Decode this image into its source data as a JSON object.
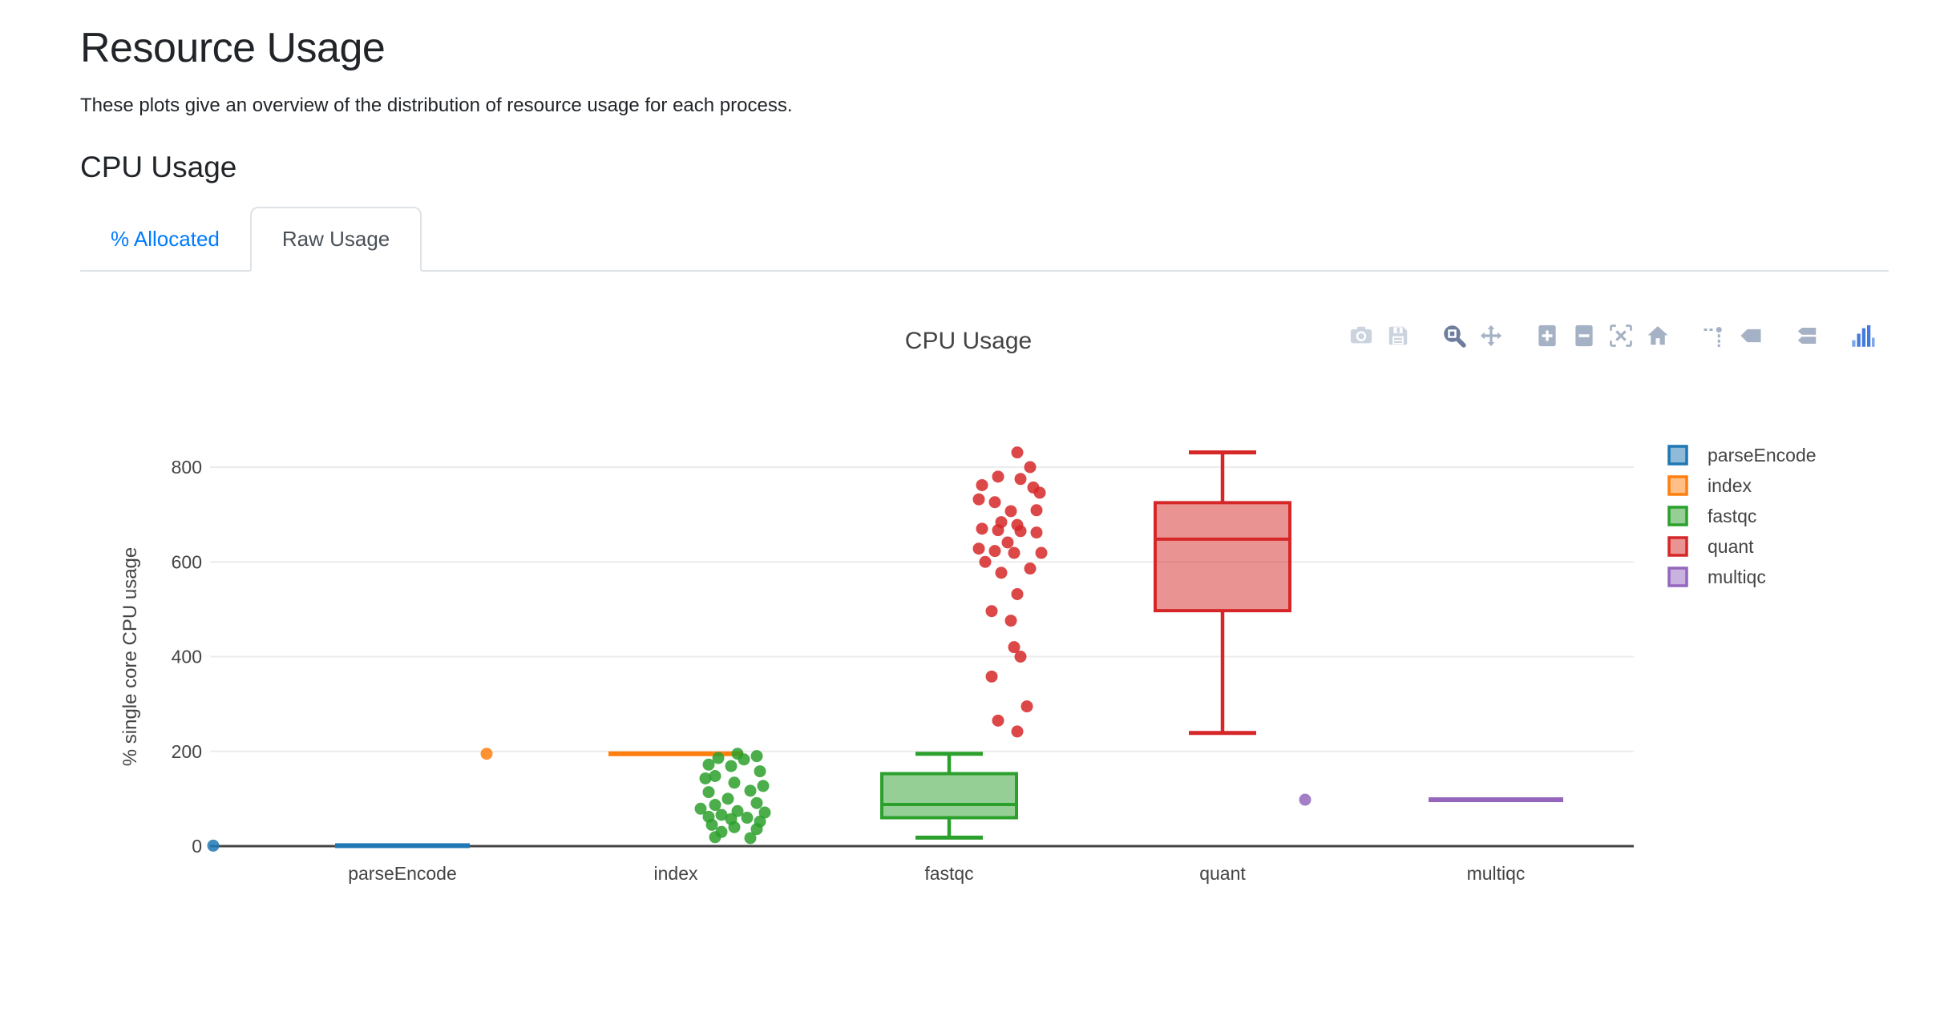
{
  "page": {
    "title": "Resource Usage",
    "subtitle": "These plots give an overview of the distribution of resource usage for each process.",
    "section_heading": "CPU Usage"
  },
  "tabs": [
    {
      "label": "% Allocated",
      "active": false
    },
    {
      "label": "Raw Usage",
      "active": true
    }
  ],
  "modebar": {
    "color_default": "#a5b1c4",
    "color_light": "#cbd3df",
    "color_active": "#6d7d9c",
    "logo_blue": "#447adb",
    "logo_blue_light": "#7da7ea",
    "icons": [
      {
        "name": "camera-icon",
        "shade": "light"
      },
      {
        "name": "save-icon",
        "shade": "light"
      },
      {
        "name": "zoom-icon",
        "shade": "active",
        "group_start": true
      },
      {
        "name": "pan-icon",
        "shade": "default"
      },
      {
        "name": "zoom-in-icon",
        "shade": "default",
        "group_start": true
      },
      {
        "name": "zoom-out-icon",
        "shade": "default"
      },
      {
        "name": "autoscale-icon",
        "shade": "default"
      },
      {
        "name": "reset-axes-icon",
        "shade": "default"
      },
      {
        "name": "spikelines-icon",
        "shade": "default",
        "group_start": true
      },
      {
        "name": "hover-closest-icon",
        "shade": "default"
      },
      {
        "name": "hover-compare-icon",
        "shade": "default",
        "group_start": true
      },
      {
        "name": "plotly-logo-icon",
        "shade": "logo",
        "group_start": true
      }
    ]
  },
  "chart_data": {
    "type": "box",
    "title": "CPU Usage",
    "xlabel": "",
    "ylabel": "% single core CPU usage",
    "yticks": [
      0,
      200,
      400,
      600,
      800
    ],
    "ylim": [
      -45,
      905
    ],
    "grid": true,
    "legend_position": "right",
    "text_color": "#444444",
    "grid_color": "#ebebeb",
    "zeroline_color": "#444444",
    "categories": [
      "parseEncode",
      "index",
      "fastqc",
      "quant",
      "multiqc"
    ],
    "series": [
      {
        "name": "parseEncode",
        "color": "#1f77b4",
        "box": {
          "min": 1,
          "q1": 1,
          "median": 1,
          "q3": 1,
          "max": 1
        },
        "points": [
          [
            1,
            -118
          ]
        ]
      },
      {
        "name": "index",
        "color": "#ff7f0e",
        "box": {
          "min": 195,
          "q1": 195,
          "median": 195,
          "q3": 195,
          "max": 195
        },
        "points": [
          [
            195,
            -118
          ]
        ]
      },
      {
        "name": "fastqc",
        "color": "#2ca02c",
        "box": {
          "min": 18,
          "q1": 60,
          "median": 88,
          "q3": 153,
          "max": 195
        },
        "points": [
          [
            195,
            -132
          ],
          [
            190,
            -120
          ],
          [
            186,
            -144
          ],
          [
            183,
            -128
          ],
          [
            172,
            -150
          ],
          [
            169,
            -136
          ],
          [
            158,
            -118
          ],
          [
            148,
            -146
          ],
          [
            143,
            -152
          ],
          [
            134,
            -134
          ],
          [
            127,
            -116
          ],
          [
            117,
            -124
          ],
          [
            114,
            -150
          ],
          [
            100,
            -138
          ],
          [
            91,
            -120
          ],
          [
            87,
            -146
          ],
          [
            79,
            -155
          ],
          [
            74,
            -132
          ],
          [
            71,
            -115
          ],
          [
            66,
            -142
          ],
          [
            62,
            -150
          ],
          [
            60,
            -126
          ],
          [
            57,
            -136
          ],
          [
            52,
            -118
          ],
          [
            45,
            -148
          ],
          [
            40,
            -134
          ],
          [
            36,
            -120
          ],
          [
            30,
            -142
          ],
          [
            19,
            -146
          ],
          [
            17,
            -124
          ]
        ]
      },
      {
        "name": "quant",
        "color": "#d62728",
        "box": {
          "min": 239,
          "q1": 497,
          "median": 648,
          "q3": 725,
          "max": 831
        },
        "points": [
          [
            831,
            -128
          ],
          [
            800,
            -120
          ],
          [
            780,
            -140
          ],
          [
            775,
            -126
          ],
          [
            762,
            -150
          ],
          [
            757,
            -118
          ],
          [
            746,
            -114
          ],
          [
            732,
            -152
          ],
          [
            726,
            -142
          ],
          [
            709,
            -116
          ],
          [
            707,
            -132
          ],
          [
            684,
            -138
          ],
          [
            678,
            -128
          ],
          [
            670,
            -150
          ],
          [
            667,
            -140
          ],
          [
            665,
            -126
          ],
          [
            662,
            -116
          ],
          [
            641,
            -134
          ],
          [
            628,
            -152
          ],
          [
            623,
            -142
          ],
          [
            619,
            -130
          ],
          [
            619,
            -113
          ],
          [
            600,
            -148
          ],
          [
            586,
            -120
          ],
          [
            577,
            -138
          ],
          [
            532,
            -128
          ],
          [
            496,
            -144
          ],
          [
            476,
            -132
          ],
          [
            420,
            -130
          ],
          [
            400,
            -126
          ],
          [
            358,
            -144
          ],
          [
            295,
            -122
          ],
          [
            265,
            -140
          ],
          [
            242,
            -128
          ]
        ]
      },
      {
        "name": "multiqc",
        "color": "#9467bd",
        "box": {
          "min": 98,
          "q1": 98,
          "median": 98,
          "q3": 98,
          "max": 98
        },
        "points": [
          [
            98,
            -119
          ]
        ]
      }
    ]
  }
}
